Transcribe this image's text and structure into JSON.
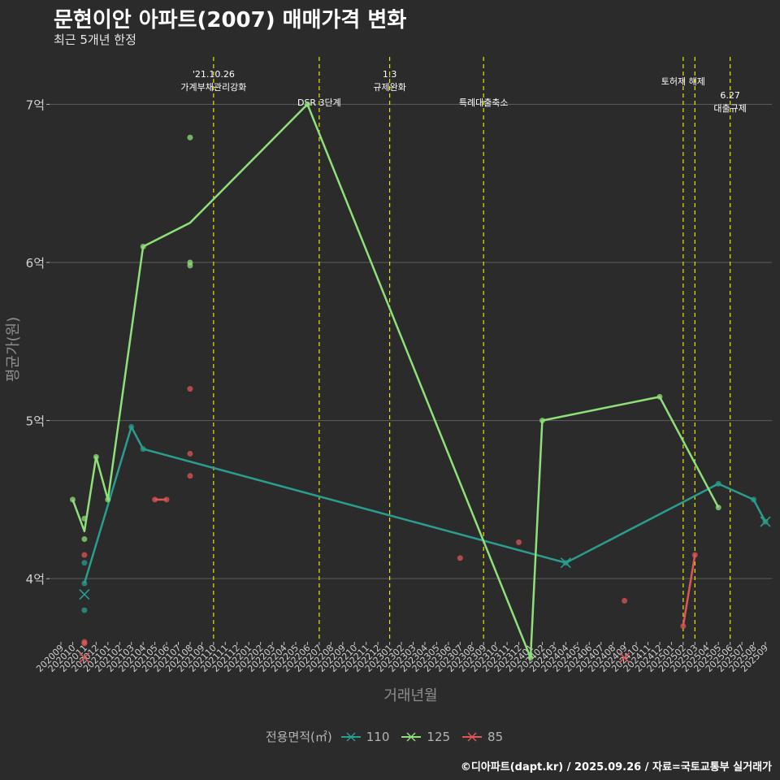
{
  "header": {
    "title": "문현이안 아파트(2007) 매매가격 변화",
    "subtitle": "최근 5개년 한정"
  },
  "caption": "©디아파트(dapt.kr) / 2025.09.26 / 자료=국토교통부 실거래가",
  "legend": {
    "title": "전용면적(㎡)",
    "items": [
      {
        "label": "110",
        "color": "#2a9d8f"
      },
      {
        "label": "125",
        "color": "#8fe07a"
      },
      {
        "label": "85",
        "color": "#e05555"
      }
    ]
  },
  "chart_data": {
    "type": "line",
    "xlabel": "거래년월",
    "ylabel": "평균가(원)",
    "ylim": [
      3.6,
      7.3
    ],
    "yticks": [
      {
        "value": 4,
        "label": "4억"
      },
      {
        "value": 5,
        "label": "5억"
      },
      {
        "value": 6,
        "label": "6억"
      },
      {
        "value": 7,
        "label": "7억"
      }
    ],
    "x_categories": [
      "202009",
      "202010",
      "202011",
      "202012",
      "202101",
      "202102",
      "202103",
      "202104",
      "202105",
      "202106",
      "202107",
      "202108",
      "202109",
      "202110",
      "202111",
      "202112",
      "202201",
      "202202",
      "202203",
      "202204",
      "202205",
      "202206",
      "202207",
      "202208",
      "202209",
      "202210",
      "202211",
      "202212",
      "202301",
      "202302",
      "202303",
      "202304",
      "202305",
      "202306",
      "202307",
      "202308",
      "202309",
      "202310",
      "202311",
      "202312",
      "202401",
      "202402",
      "202403",
      "202404",
      "202405",
      "202406",
      "202407",
      "202408",
      "202409",
      "202410",
      "202411",
      "202412",
      "202501",
      "202502",
      "202503",
      "202504",
      "202505",
      "202506",
      "202507",
      "202508",
      "202509"
    ],
    "events": [
      {
        "x": "202110",
        "label": "'21.10.26\n가계부채관리강화",
        "pos": "top"
      },
      {
        "x": "202207",
        "label": "DSR 3단계",
        "pos": "mid"
      },
      {
        "x": "202301",
        "label": "1.3\n규제완화",
        "pos": "top"
      },
      {
        "x": "202309",
        "label": "특례대출축소",
        "pos": "mid"
      },
      {
        "x": "202502",
        "label": "토허제 해제",
        "pos": "top2"
      },
      {
        "x": "202503",
        "label": "",
        "pos": "none"
      },
      {
        "x": "202506",
        "label": "6.27\n대출규제",
        "pos": "low"
      }
    ],
    "series": [
      {
        "name": "110",
        "color": "#2a9d8f",
        "line": [
          [
            "202011",
            3.97
          ],
          [
            "202103",
            4.96
          ],
          [
            "202104",
            4.82
          ],
          [
            "202404",
            4.1
          ],
          [
            "202505",
            4.6
          ],
          [
            "202508",
            4.5
          ],
          [
            "202509",
            4.36
          ]
        ],
        "points": [
          [
            "202011",
            4.1
          ],
          [
            "202011",
            3.97
          ],
          [
            "202011",
            3.8
          ],
          [
            "202103",
            4.96
          ],
          [
            "202104",
            4.82
          ],
          [
            "202404",
            4.1
          ],
          [
            "202505",
            4.6
          ],
          [
            "202508",
            4.5
          ],
          [
            "202509",
            4.36
          ]
        ],
        "crosses": [
          [
            "202011",
            3.9
          ],
          [
            "202404",
            4.1
          ],
          [
            "202509",
            4.36
          ]
        ]
      },
      {
        "name": "125",
        "color": "#8fe07a",
        "line": [
          [
            "202010",
            4.5
          ],
          [
            "202011",
            4.3
          ],
          [
            "202012",
            4.77
          ],
          [
            "202101",
            4.5
          ],
          [
            "202104",
            6.1
          ],
          [
            "202108",
            6.25
          ],
          [
            "202206",
            7.0
          ],
          [
            "202401",
            3.5
          ],
          [
            "202402",
            5.0
          ],
          [
            "202412",
            5.15
          ],
          [
            "202505",
            4.45
          ]
        ],
        "points": [
          [
            "202010",
            4.5
          ],
          [
            "202011",
            4.38
          ],
          [
            "202011",
            4.25
          ],
          [
            "202012",
            4.77
          ],
          [
            "202101",
            4.5
          ],
          [
            "202104",
            6.1
          ],
          [
            "202108",
            6.79
          ],
          [
            "202108",
            6.0
          ],
          [
            "202108",
            5.98
          ],
          [
            "202206",
            7.0
          ],
          [
            "202401",
            3.5
          ],
          [
            "202402",
            5.0
          ],
          [
            "202412",
            5.15
          ],
          [
            "202505",
            4.45
          ]
        ],
        "crosses": []
      },
      {
        "name": "85",
        "color": "#e05555",
        "line": [
          [
            "202105",
            4.5
          ],
          [
            "202106",
            4.5
          ]
        ],
        "line2": [
          [
            "202502",
            3.7
          ],
          [
            "202503",
            4.15
          ]
        ],
        "points": [
          [
            "202011",
            4.15
          ],
          [
            "202011",
            3.6
          ],
          [
            "202011",
            3.59
          ],
          [
            "202105",
            4.5
          ],
          [
            "202106",
            4.5
          ],
          [
            "202108",
            5.2
          ],
          [
            "202108",
            4.79
          ],
          [
            "202108",
            4.65
          ],
          [
            "202307",
            4.13
          ],
          [
            "202312",
            4.23
          ],
          [
            "202409",
            3.86
          ],
          [
            "202502",
            3.7
          ],
          [
            "202503",
            4.15
          ]
        ],
        "crosses": [
          [
            "202011",
            3.5
          ],
          [
            "202409",
            3.5
          ]
        ]
      }
    ]
  }
}
